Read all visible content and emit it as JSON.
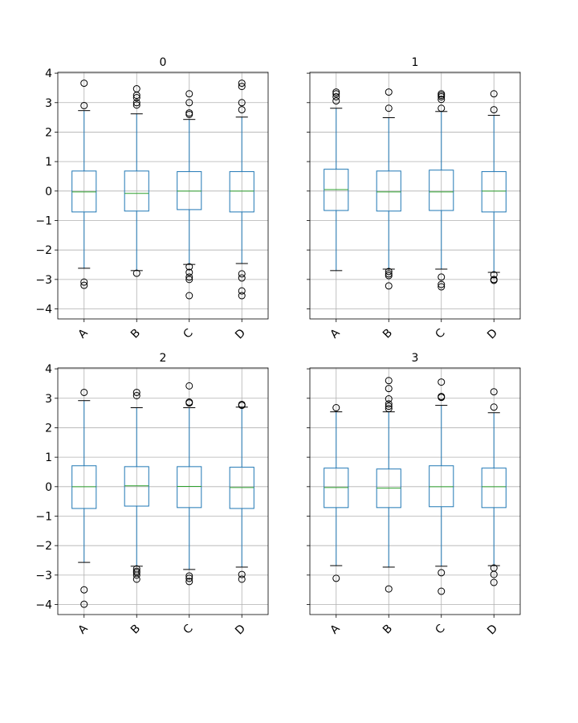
{
  "chart_data": {
    "type": "boxplot",
    "ylim": [
      -4.34,
      4.03
    ],
    "yticks": [
      4,
      3,
      2,
      1,
      0,
      -1,
      -2,
      -3,
      -4
    ],
    "ytick_labels": [
      "4",
      "3",
      "2",
      "1",
      "0",
      "−1",
      "−2",
      "−3",
      "−4"
    ],
    "categories": [
      "A",
      "B",
      "C",
      "D"
    ],
    "grid": true,
    "sharey": true,
    "colors": {
      "box": "#1f77b4",
      "median": "#2ca02c",
      "cap": "#000000",
      "flier": "#000000",
      "grid": "#b0b0b0"
    },
    "subplots": [
      {
        "title": "0",
        "boxes": [
          {
            "whislo": -2.62,
            "q1": -0.71,
            "med": -0.03,
            "q3": 0.68,
            "whishi": 2.73,
            "fliers": [
              3.66,
              2.9,
              -3.09,
              -3.2
            ]
          },
          {
            "whislo": -2.7,
            "q1": -0.68,
            "med": -0.08,
            "q3": 0.68,
            "whishi": 2.62,
            "fliers": [
              3.47,
              3.25,
              3.17,
              3.0,
              2.92,
              -2.79
            ]
          },
          {
            "whislo": -2.49,
            "q1": -0.63,
            "med": 0.0,
            "q3": 0.66,
            "whishi": 2.43,
            "fliers": [
              3.3,
              3.0,
              2.65,
              2.6,
              -2.57,
              -2.76,
              -2.92,
              -3.0,
              -3.55
            ]
          },
          {
            "whislo": -2.46,
            "q1": -0.71,
            "med": 0.0,
            "q3": 0.66,
            "whishi": 2.51,
            "fliers": [
              3.66,
              3.55,
              3.0,
              2.76,
              -2.81,
              -2.95,
              -3.39,
              -3.55
            ]
          }
        ]
      },
      {
        "title": "1",
        "boxes": [
          {
            "whislo": -2.7,
            "q1": -0.66,
            "med": 0.05,
            "q3": 0.74,
            "whishi": 2.81,
            "fliers": [
              3.36,
              3.3,
              3.2,
              3.06
            ]
          },
          {
            "whislo": -2.65,
            "q1": -0.68,
            "med": -0.03,
            "q3": 0.68,
            "whishi": 2.49,
            "fliers": [
              3.36,
              2.81,
              -2.73,
              -2.81,
              -2.87,
              -3.22
            ]
          },
          {
            "whislo": -2.65,
            "q1": -0.66,
            "med": -0.03,
            "q3": 0.71,
            "whishi": 2.7,
            "fliers": [
              3.3,
              3.25,
              3.2,
              3.11,
              2.81,
              -2.92,
              -3.17,
              -3.25
            ]
          },
          {
            "whislo": -2.76,
            "q1": -0.71,
            "med": 0.0,
            "q3": 0.66,
            "whishi": 2.57,
            "fliers": [
              3.3,
              2.76,
              -2.84,
              -3.0,
              -3.03
            ]
          }
        ]
      },
      {
        "title": "2",
        "boxes": [
          {
            "whislo": -2.57,
            "q1": -0.74,
            "med": 0.0,
            "q3": 0.71,
            "whishi": 2.92,
            "fliers": [
              3.2,
              -3.5,
              -3.99
            ]
          },
          {
            "whislo": -2.7,
            "q1": -0.66,
            "med": 0.03,
            "q3": 0.68,
            "whishi": 2.68,
            "fliers": [
              3.2,
              3.09,
              -2.79,
              -2.87,
              -2.92,
              -3.0,
              -3.14
            ]
          },
          {
            "whislo": -2.81,
            "q1": -0.71,
            "med": 0.01,
            "q3": 0.68,
            "whishi": 2.68,
            "fliers": [
              3.42,
              2.87,
              2.84,
              -3.03,
              -3.11,
              -3.22
            ]
          },
          {
            "whislo": -2.73,
            "q1": -0.74,
            "med": -0.03,
            "q3": 0.66,
            "whishi": 2.7,
            "fliers": [
              2.79,
              2.76,
              -2.98,
              -3.14
            ]
          }
        ]
      },
      {
        "title": "3",
        "boxes": [
          {
            "whislo": -2.68,
            "q1": -0.71,
            "med": -0.03,
            "q3": 0.63,
            "whishi": 2.54,
            "fliers": [
              2.68,
              -3.11
            ]
          },
          {
            "whislo": -2.73,
            "q1": -0.71,
            "med": -0.05,
            "q3": 0.6,
            "whishi": 2.54,
            "fliers": [
              3.6,
              3.33,
              2.98,
              2.81,
              2.73,
              2.65,
              -3.47
            ]
          },
          {
            "whislo": -2.7,
            "q1": -0.68,
            "med": 0.0,
            "q3": 0.71,
            "whishi": 2.76,
            "fliers": [
              3.55,
              3.06,
              3.03,
              -2.92,
              -3.55
            ]
          },
          {
            "whislo": -2.68,
            "q1": -0.71,
            "med": 0.0,
            "q3": 0.63,
            "whishi": 2.51,
            "fliers": [
              3.22,
              2.7,
              -2.76,
              -2.98,
              -3.25
            ]
          }
        ]
      }
    ]
  }
}
